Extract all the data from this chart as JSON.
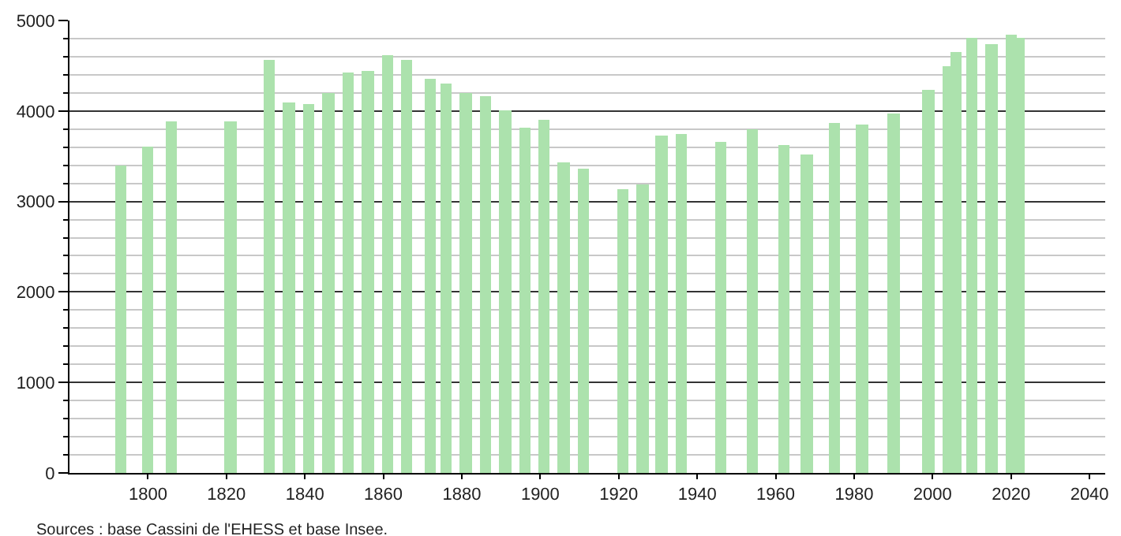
{
  "chart_data": {
    "type": "bar",
    "x": [
      1793,
      1800,
      1806,
      1821,
      1831,
      1836,
      1841,
      1846,
      1851,
      1856,
      1861,
      1866,
      1872,
      1876,
      1881,
      1886,
      1891,
      1896,
      1901,
      1906,
      1911,
      1921,
      1926,
      1931,
      1936,
      1946,
      1954,
      1962,
      1968,
      1975,
      1982,
      1990,
      1999,
      2004,
      2006,
      2010,
      2015,
      2020,
      2022
    ],
    "values": [
      3390,
      3610,
      3890,
      3890,
      4560,
      4100,
      4080,
      4190,
      4420,
      4450,
      4610,
      4560,
      4360,
      4300,
      4190,
      4170,
      4000,
      3820,
      3910,
      3440,
      3360,
      3130,
      3190,
      3720,
      3750,
      3660,
      3800,
      3630,
      3520,
      3870,
      3850,
      3970,
      4230,
      4490,
      4650,
      4800,
      4740,
      4840,
      4800
    ],
    "color": "#ace2ad",
    "xlim": [
      1780,
      2044
    ],
    "xticks": [
      1800,
      1820,
      1840,
      1860,
      1880,
      1900,
      1920,
      1940,
      1960,
      1980,
      2000,
      2020,
      2040
    ],
    "ylim": [
      0,
      5000
    ],
    "yticks": [
      0,
      {
        "value": 200,
        "label": null
      },
      {
        "value": 400,
        "label": null
      },
      {
        "value": 600,
        "label": null
      },
      {
        "value": 800,
        "label": null
      },
      1000,
      {
        "value": 1200,
        "label": null
      },
      {
        "value": 1400,
        "label": null
      },
      {
        "value": 1600,
        "label": null
      },
      {
        "value": 1800,
        "label": null
      },
      2000,
      {
        "value": 2200,
        "label": null
      },
      {
        "value": 2400,
        "label": null
      },
      {
        "value": 2600,
        "label": null
      },
      {
        "value": 2800,
        "label": null
      },
      3000,
      {
        "value": 3200,
        "label": null
      },
      {
        "value": 3400,
        "label": null
      },
      {
        "value": 3600,
        "label": null
      },
      {
        "value": 3800,
        "label": null
      },
      4000,
      {
        "value": 4200,
        "label": null
      },
      {
        "value": 4400,
        "label": null
      },
      {
        "value": 4600,
        "label": null
      },
      {
        "value": 4800,
        "label": null
      },
      5000
    ],
    "grid": "y",
    "annotations": [
      "Sources : base Cassini de l'EHESS et base Insee."
    ]
  }
}
